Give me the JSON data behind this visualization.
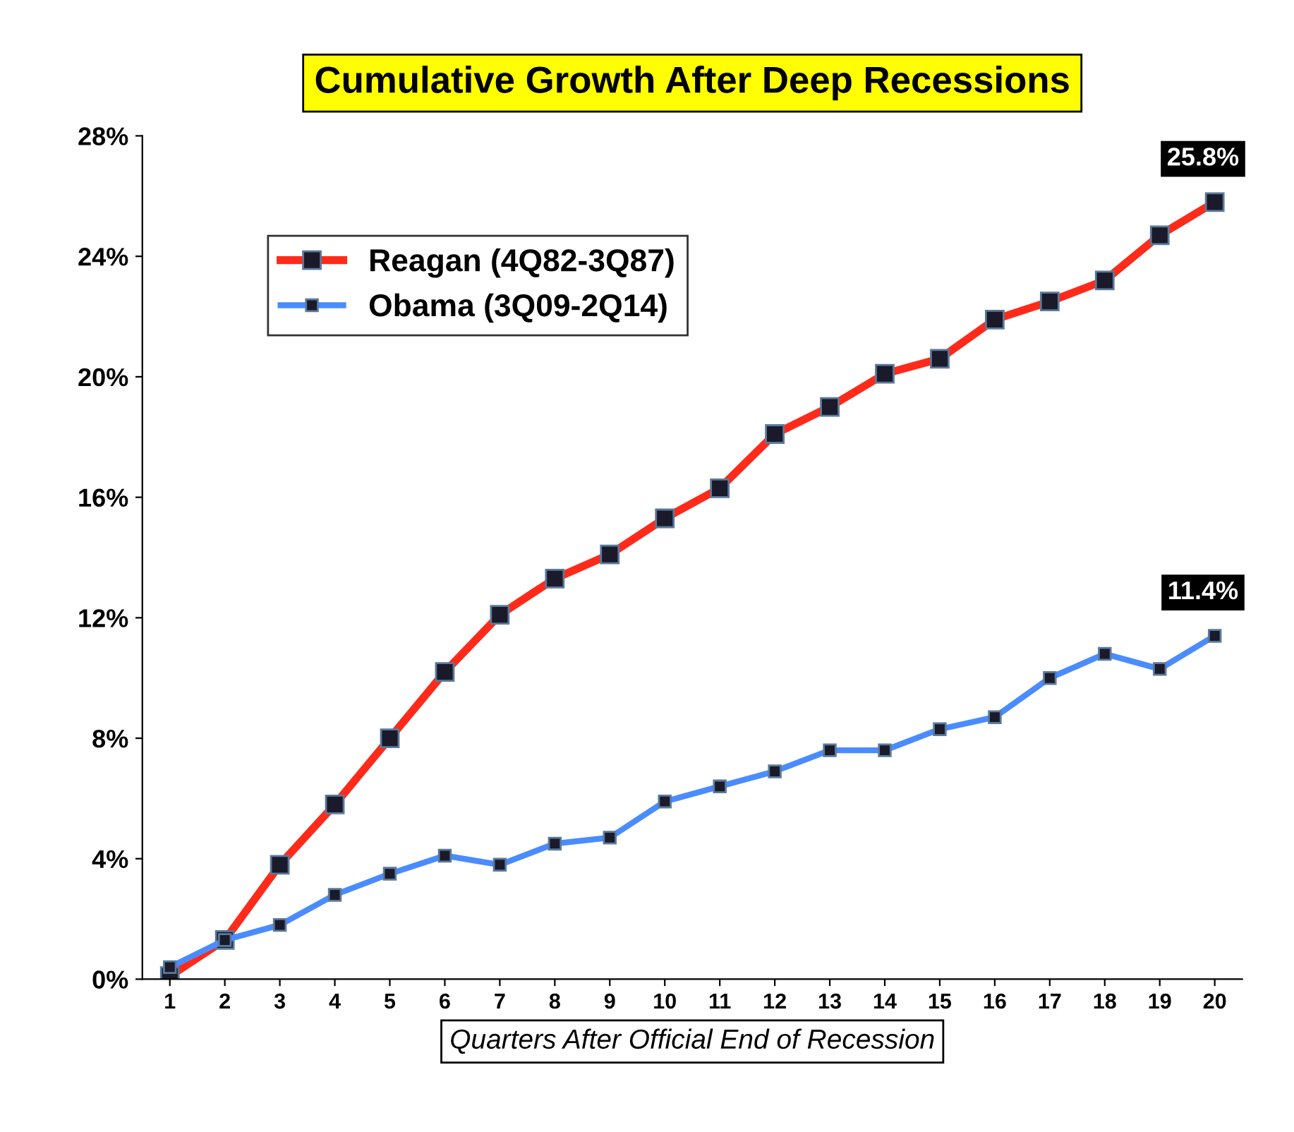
{
  "chart_data": {
    "type": "line",
    "title": "Cumulative Growth After Deep Recessions",
    "xlabel": "Quarters After Official End of Recession",
    "categories": [
      "1",
      "2",
      "3",
      "4",
      "5",
      "6",
      "7",
      "8",
      "9",
      "10",
      "11",
      "12",
      "13",
      "14",
      "15",
      "16",
      "17",
      "18",
      "19",
      "20"
    ],
    "series": [
      {
        "name": "Reagan (4Q82-3Q87)",
        "color": "#ff2a1a",
        "values": [
          0.1,
          1.3,
          3.8,
          5.8,
          8.0,
          10.2,
          12.1,
          13.3,
          14.1,
          15.3,
          16.3,
          18.1,
          19.0,
          20.1,
          20.6,
          21.9,
          22.5,
          23.2,
          24.7,
          25.8
        ]
      },
      {
        "name": "Obama (3Q09-2Q14)",
        "color": "#4a8cff",
        "values": [
          0.4,
          1.3,
          1.8,
          2.8,
          3.5,
          4.1,
          3.8,
          4.5,
          4.7,
          5.9,
          6.4,
          6.9,
          7.6,
          7.6,
          8.3,
          8.7,
          10.0,
          10.8,
          10.3,
          11.4
        ]
      }
    ],
    "ylim": [
      0,
      28
    ],
    "yticks": [
      {
        "value": 0,
        "label": "0%"
      },
      {
        "value": 4,
        "label": "4%"
      },
      {
        "value": 8,
        "label": "8%"
      },
      {
        "value": 12,
        "label": "12%"
      },
      {
        "value": 16,
        "label": "16%"
      },
      {
        "value": 20,
        "label": "20%"
      },
      {
        "value": 24,
        "label": "24%"
      },
      {
        "value": 28,
        "label": "28%"
      }
    ],
    "annotations": [
      {
        "text": "25.8%",
        "x": "20",
        "y": 25.8
      },
      {
        "text": "11.4%",
        "x": "20",
        "y": 11.4
      }
    ],
    "legend": "top left",
    "marker": "square",
    "line_style": "solid",
    "grid": false
  }
}
